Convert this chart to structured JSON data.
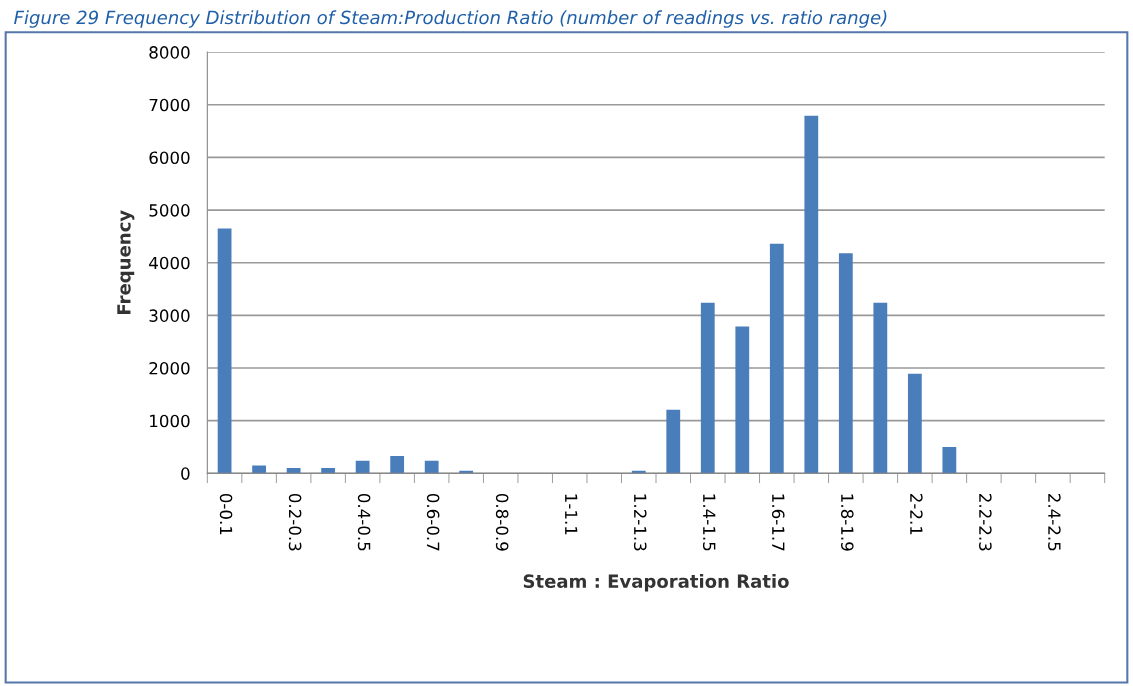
{
  "chart_data": {
    "type": "bar",
    "title": "Figure 29 Frequency Distribution of Steam:Production Ratio (number of readings vs. ratio range)",
    "xlabel": "Steam : Evaporation Ratio",
    "ylabel": "Frequency",
    "categories": [
      "0-0.1",
      null,
      "0.2-0.3",
      null,
      "0.4-0.5",
      null,
      "0.6-0.7",
      null,
      "0.8-0.9",
      null,
      "1-1.1",
      null,
      "1.2-1.3",
      null,
      "1.4-1.5",
      null,
      "1.6-1.7",
      null,
      "1.8-1.9",
      null,
      "2-2.1",
      null,
      "2.2-2.3",
      null,
      "2.4-2.5",
      null
    ],
    "values": [
      4650,
      150,
      100,
      100,
      240,
      330,
      240,
      50,
      0,
      0,
      0,
      0,
      50,
      1210,
      3240,
      2790,
      4360,
      6790,
      4180,
      3240,
      1890,
      500,
      0,
      0,
      0,
      0
    ],
    "color": "#4a7ebb",
    "ylim": [
      0,
      8000
    ],
    "yticks": [
      0,
      1000,
      2000,
      3000,
      4000,
      5000,
      6000,
      7000,
      8000
    ],
    "grid": "y"
  }
}
